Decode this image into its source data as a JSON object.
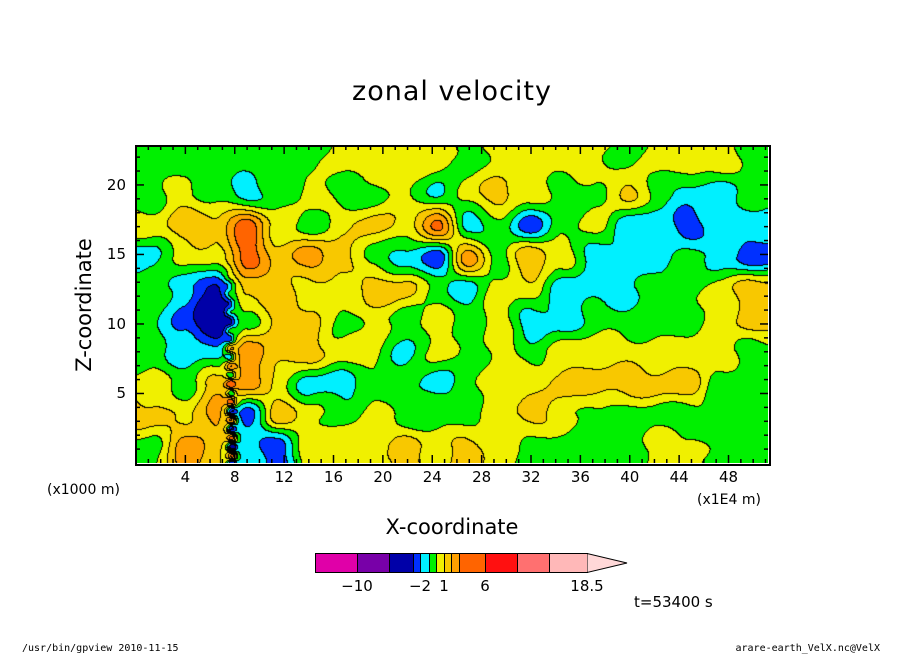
{
  "chart_data": {
    "type": "heatmap",
    "title": "zonal velocity",
    "xlabel": "X-coordinate",
    "ylabel": "Z-coordinate",
    "x_unit_label": "(x1E4 m)",
    "y_unit_label": "(x1000 m)",
    "xlim": [
      0,
      51.2
    ],
    "ylim": [
      0,
      22.8
    ],
    "x_ticks": [
      "4",
      "8",
      "12",
      "16",
      "20",
      "24",
      "28",
      "32",
      "36",
      "40",
      "44",
      "48"
    ],
    "y_ticks": [
      "5",
      "10",
      "15",
      "20"
    ],
    "colorbar": {
      "levels": [
        -14,
        -10,
        -6,
        -3,
        -2,
        -1,
        0,
        1,
        2,
        3,
        6,
        10,
        14,
        18.5
      ],
      "labels": [
        {
          "text": "−10",
          "value": -10
        },
        {
          "text": "−2",
          "value": -2
        },
        {
          "text": "1",
          "value": 1
        },
        {
          "text": "6",
          "value": 6
        },
        {
          "text": "18.5",
          "value": 18.5
        }
      ],
      "colors": [
        "#e000a8",
        "#7800a8",
        "#0000a8",
        "#0030ff",
        "#00f0ff",
        "#00f000",
        "#f0f000",
        "#f8c800",
        "#ffa000",
        "#ff6400",
        "#ff1010",
        "#ff7070",
        "#ffb8b8"
      ],
      "over_color": "#ffd8d8"
    },
    "grid_note_rows_top_to_bottom": true,
    "grid": [
      [
        -0.5,
        -0.5,
        -0.5,
        -0.5,
        -0.5,
        -0.5,
        0.5,
        0.5,
        0.5,
        0.5,
        -0.5,
        0.5,
        0.5,
        0.5,
        0.5,
        -0.5,
        0.5,
        0.5,
        0.5,
        -0.5
      ],
      [
        -0.5,
        0.5,
        -0.5,
        -1.5,
        -0.5,
        0.5,
        -0.5,
        -0.5,
        0.5,
        -1.5,
        0.5,
        1.5,
        0.5,
        -0.5,
        -0.5,
        1.5,
        -0.5,
        -1.5,
        -1.5,
        -0.5
      ],
      [
        0.5,
        1.5,
        1.5,
        3.5,
        0.5,
        -0.5,
        0.5,
        1.5,
        0.5,
        3.5,
        -1.5,
        -0.5,
        -2.5,
        -0.5,
        0.5,
        -1.5,
        -1.5,
        -2.5,
        -1.5,
        -1.5
      ],
      [
        -1.5,
        0.5,
        0.5,
        3.5,
        1.5,
        2.5,
        1.5,
        -0.5,
        -1.5,
        -2.5,
        2.5,
        -0.5,
        2.0,
        0.5,
        -1.5,
        -1.5,
        -1.5,
        -0.5,
        -1.5,
        -2.5
      ],
      [
        -0.5,
        -1.5,
        -3.5,
        1.5,
        1.5,
        0.5,
        0.5,
        1.5,
        1.5,
        -0.5,
        -1.5,
        0.5,
        0.5,
        -1.5,
        -1.5,
        -1.5,
        -0.5,
        -0.5,
        0.5,
        1.5
      ],
      [
        -0.5,
        -2.5,
        -4.5,
        -0.5,
        1.5,
        1.5,
        -0.5,
        0.5,
        -0.5,
        0.5,
        -0.5,
        0.5,
        -1.5,
        -1.5,
        -0.5,
        -0.5,
        -0.5,
        -0.5,
        0.5,
        1.5
      ],
      [
        -0.5,
        -1.5,
        -1.5,
        2.5,
        1.5,
        1.5,
        0.5,
        0.5,
        -1.5,
        0.5,
        -0.5,
        0.5,
        -0.5,
        0.5,
        0.5,
        0.5,
        0.5,
        0.5,
        0.5,
        -0.5
      ],
      [
        0.5,
        -0.5,
        1.5,
        2.5,
        0.5,
        -1.5,
        -1.5,
        -0.5,
        -0.5,
        -1.5,
        -0.5,
        0.5,
        0.5,
        1.5,
        1.5,
        1.5,
        1.5,
        1.5,
        -0.5,
        -0.5
      ],
      [
        1.5,
        0.5,
        2.5,
        -2.5,
        1.5,
        0.5,
        -0.5,
        0.5,
        -0.5,
        -0.5,
        -0.5,
        0.5,
        1.5,
        0.5,
        -0.5,
        -0.5,
        -0.5,
        -0.5,
        -0.5,
        -0.5
      ],
      [
        -0.5,
        2.5,
        1.5,
        -1.5,
        -2.5,
        0.5,
        0.5,
        0.5,
        1.5,
        0.5,
        1.5,
        0.5,
        -0.5,
        -0.5,
        -0.5,
        -0.5,
        0.5,
        0.5,
        -0.5,
        -0.5
      ]
    ]
  },
  "annotations": {
    "time": "t=53400 s",
    "footer_left": "/usr/bin/gpview   2010-11-15",
    "footer_right": "arare-earth_VelX.nc@VelX"
  }
}
